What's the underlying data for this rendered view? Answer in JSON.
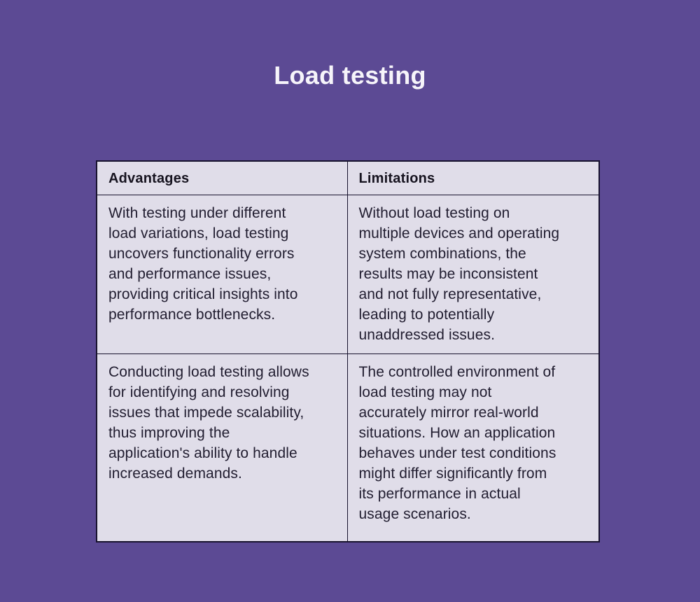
{
  "page": {
    "title": "Load testing"
  },
  "table": {
    "headers": [
      "Advantages",
      "Limitations"
    ],
    "rows": [
      {
        "advantages": "With testing under different\nload variations, load testing\nuncovers functionality errors\nand performance issues,\nproviding critical insights into\nperformance bottlenecks.",
        "limitations": "Without load testing on\nmultiple devices and operating\nsystem combinations, the\nresults may be inconsistent\nand not fully representative,\nleading to potentially\nunaddressed issues."
      },
      {
        "advantages": "Conducting load testing allows\nfor identifying and resolving\nissues that impede scalability,\nthus improving the\napplication's ability to handle\nincreased demands.",
        "limitations": "The controlled environment of\nload testing may not\naccurately mirror real-world\nsituations. How an application\nbehaves under test conditions\nmight differ significantly from\nits performance in actual\nusage scenarios."
      }
    ]
  },
  "colors": {
    "background": "#5c4a94",
    "cell_background": "#e0dde9",
    "border": "#17122d",
    "body_text": "#211d30",
    "header_text": "#16131f",
    "title_text": "#f6f4fa"
  }
}
